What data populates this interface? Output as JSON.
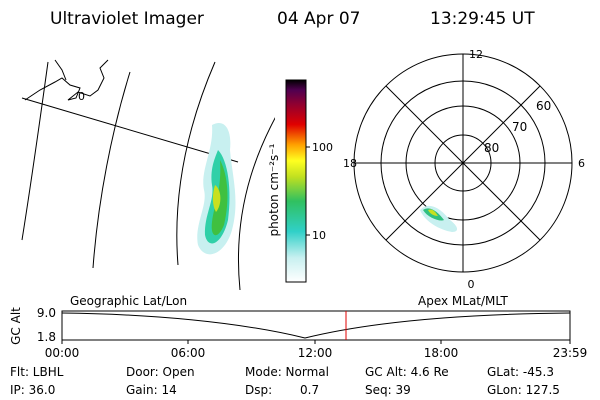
{
  "header": {
    "title": "Ultraviolet Imager",
    "date": "04 Apr 07",
    "time": "13:29:45 UT"
  },
  "map": {
    "label": "0"
  },
  "colorbar": {
    "title": "photon cm⁻²s⁻¹",
    "ticks": [
      "100",
      "10"
    ]
  },
  "polar": {
    "clock": [
      "12",
      "6",
      "0",
      "18"
    ],
    "latitudes": [
      "60",
      "70",
      "80"
    ]
  },
  "timeline": {
    "left_title": "Geographic Lat/Lon",
    "right_title": "Apex MLat/MLT",
    "axis_label": "GC Alt",
    "yticks": [
      "9.0",
      "1.8"
    ],
    "xticks": [
      "00:00",
      "06:00",
      "12:00",
      "18:00",
      "23:59"
    ]
  },
  "info": {
    "rows": [
      [
        "Flt: LBHL",
        "Door: Open",
        "Mode: Normal",
        "GC Alt: 4.6 Re",
        "GLat: -45.3"
      ],
      [
        "IP: 36.0",
        "Gain: 14",
        "Dsp:",
        "0.7",
        "Seq: 39",
        "GLon: 127.5"
      ]
    ]
  }
}
